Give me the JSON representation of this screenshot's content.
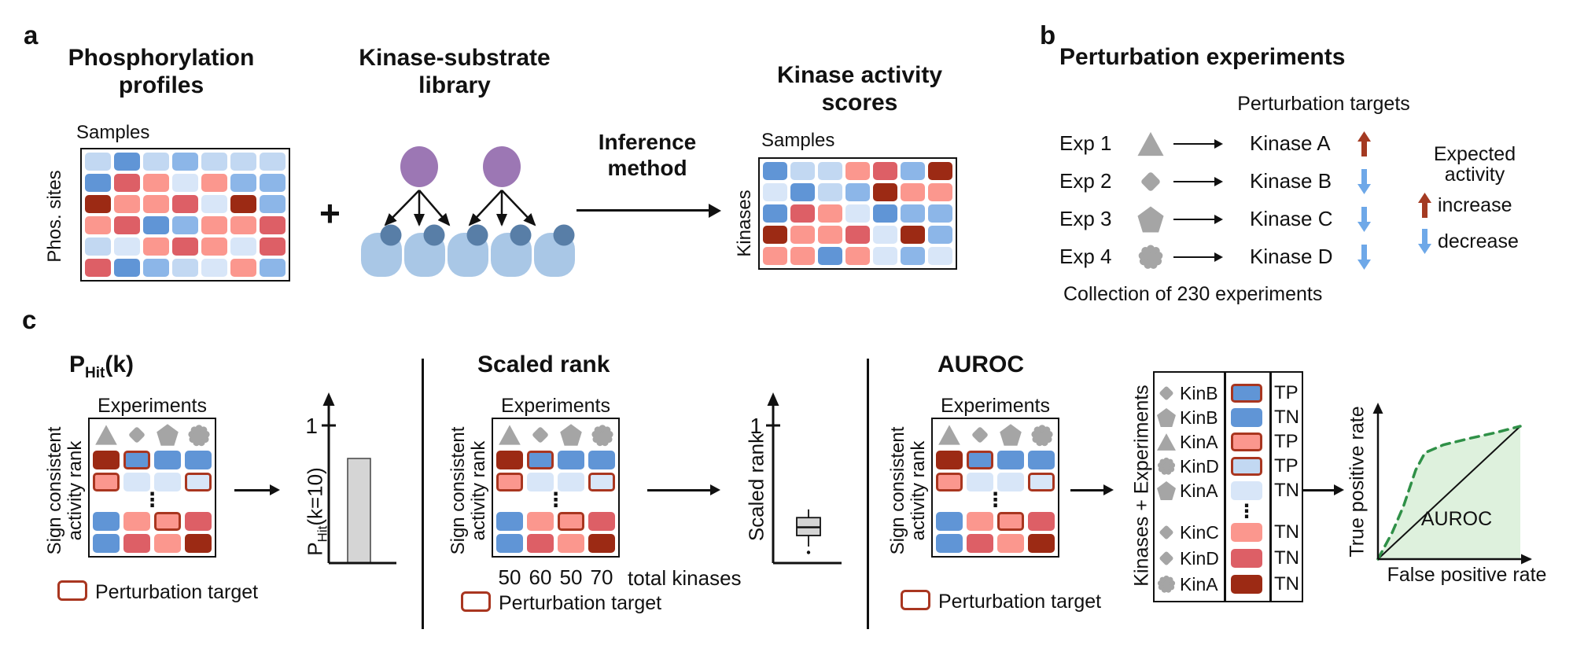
{
  "figure": {
    "panel_a_label": "a",
    "panel_b_label": "b",
    "panel_c_label": "c"
  },
  "colors": {
    "B1": "#d8e6f8",
    "B2": "#c2d8f2",
    "B3": "#8cb6e8",
    "B4": "#6095d6",
    "R1": "#fb978e",
    "R2": "#dd5f66",
    "R3": "#9c2a14",
    "outline": "#a93620",
    "shape_gray": "#a5a5a5",
    "purple": "#9c77b4",
    "substrate_light": "#a9c7e6",
    "substrate_dark": "#587ea7",
    "bar_fill": "#d5d5d5",
    "arrow_up_red": "#a43a22",
    "arrow_down_blue": "#6ea8e8",
    "roc_green": "#2f9047",
    "roc_fill": "#def1dd"
  },
  "panel_a": {
    "profiles_title": [
      "Phosphorylation",
      "profiles"
    ],
    "samples_label": "Samples",
    "sites_label": "Phos. sites",
    "plus_sign": "+",
    "library_title": [
      "Kinase-substrate",
      "library"
    ],
    "inference_label": [
      "Inference",
      "method"
    ],
    "scores_title": [
      "Kinase activity",
      "scores"
    ],
    "scores_samples_label": "Samples",
    "kinases_label": "Kinases",
    "phospho_heatmap": [
      [
        "B2",
        "B4",
        "B2",
        "B3",
        "B2",
        "B2",
        "B2"
      ],
      [
        "B4",
        "R2",
        "R1",
        "B1",
        "R1",
        "B3",
        "B3"
      ],
      [
        "R3",
        "R1",
        "R1",
        "R2",
        "B1",
        "R3",
        "B3"
      ],
      [
        "R1",
        "R2",
        "B4",
        "B3",
        "R1",
        "R1",
        "R2"
      ],
      [
        "B2",
        "B1",
        "R1",
        "R2",
        "R1",
        "B1",
        "R2"
      ],
      [
        "R2",
        "B4",
        "B3",
        "B2",
        "B1",
        "R1",
        "B3"
      ]
    ],
    "activity_heatmap": [
      [
        "B4",
        "B2",
        "B2",
        "R1",
        "R2",
        "B3",
        "R3"
      ],
      [
        "B1",
        "B4",
        "B2",
        "B3",
        "R3",
        "R1",
        "R1"
      ],
      [
        "B4",
        "R2",
        "R1",
        "B1",
        "B4",
        "B3",
        "B3"
      ],
      [
        "R3",
        "R1",
        "R1",
        "R2",
        "B1",
        "R3",
        "B3"
      ],
      [
        "R1",
        "R1",
        "B4",
        "R1",
        "B1",
        "B3",
        "B1"
      ]
    ],
    "network": {
      "kinase_count": 2,
      "substrate_count": 5,
      "edges": [
        [
          0,
          0
        ],
        [
          0,
          1
        ],
        [
          0,
          2
        ],
        [
          1,
          2
        ],
        [
          1,
          3
        ],
        [
          1,
          4
        ]
      ]
    }
  },
  "panel_b": {
    "title": "Perturbation experiments",
    "subtitle": "Perturbation targets",
    "rows": [
      {
        "exp": "Exp 1",
        "shape": "triangle",
        "kinase": "Kinase A",
        "direction": "up"
      },
      {
        "exp": "Exp 2",
        "shape": "diamond",
        "kinase": "Kinase B",
        "direction": "down"
      },
      {
        "exp": "Exp 3",
        "shape": "pentagon",
        "kinase": "Kinase C",
        "direction": "down"
      },
      {
        "exp": "Exp 4",
        "shape": "flower",
        "kinase": "Kinase D",
        "direction": "down"
      }
    ],
    "expected_title": [
      "Expected",
      "activity"
    ],
    "legend": [
      {
        "direction": "up",
        "label": "increase"
      },
      {
        "direction": "down",
        "label": "decrease"
      }
    ],
    "footer": "Collection of 230 experiments"
  },
  "panel_c": {
    "sections": [
      {
        "id": "phit",
        "title_parts": {
          "main": "P",
          "sub": "Hit",
          "rest": "(k)"
        }
      },
      {
        "id": "scaled",
        "title": "Scaled rank"
      },
      {
        "id": "auroc",
        "title": "AUROC"
      }
    ],
    "matrix": {
      "experiments_label": "Experiments",
      "ylabel": [
        "Sign consistent",
        "activity rank"
      ],
      "col_shapes": [
        "triangle",
        "diamond",
        "pentagon",
        "flower"
      ],
      "rows_top": [
        [
          "R3",
          "B4*",
          "B4",
          "B4"
        ],
        [
          "R1*",
          "B1",
          "B1",
          "B1*"
        ]
      ],
      "dots": "⋮",
      "rows_bottom": [
        [
          "B4",
          "R1",
          "R1*",
          "R2"
        ],
        [
          "B4",
          "R2",
          "R1",
          "R3"
        ]
      ]
    },
    "legend_label": "Perturbation target",
    "phit_chart": {
      "axis_tick": "1",
      "ylabel_parts": {
        "main": "P",
        "sub": "Hit",
        "rest": "(k=10)"
      },
      "bar_value": 0.76
    },
    "scaled_chart": {
      "axis_tick": "1",
      "ylabel": "Scaled rank",
      "totals": [
        "50",
        "60",
        "50",
        "70"
      ],
      "totals_label": "total kinases",
      "box": {
        "whisker_low": 0.12,
        "q1": 0.2,
        "median": 0.26,
        "q3": 0.33,
        "whisker_high": 0.39,
        "outlier": 0.1
      }
    },
    "auroc_chart": {
      "list_label": "Kinases + Experiments",
      "list_rows": [
        {
          "shape": "diamond",
          "kinase": "KinB",
          "cell": "B4*",
          "label": "TP"
        },
        {
          "shape": "pentagon",
          "kinase": "KinB",
          "cell": "B4",
          "label": "TN"
        },
        {
          "shape": "triangle",
          "kinase": "KinA",
          "cell": "R1*",
          "label": "TP"
        },
        {
          "shape": "flower",
          "kinase": "KinD",
          "cell": "B2*",
          "label": "TP"
        },
        {
          "shape": "pentagon",
          "kinase": "KinA",
          "cell": "B1",
          "label": "TN"
        },
        {
          "dots": "⋮"
        },
        {
          "shape": "diamond",
          "kinase": "KinC",
          "cell": "R1",
          "label": "TN"
        },
        {
          "shape": "diamond",
          "kinase": "KinD",
          "cell": "R2",
          "label": "TN"
        },
        {
          "shape": "flower",
          "kinase": "KinA",
          "cell": "R3",
          "label": "TN"
        }
      ],
      "roc": {
        "xlabel": "False positive rate",
        "ylabel": "True positive rate",
        "area_label": "AUROC",
        "curve": [
          [
            0,
            0
          ],
          [
            0.1,
            0.2
          ],
          [
            0.18,
            0.4
          ],
          [
            0.265,
            0.67
          ],
          [
            0.33,
            0.8
          ],
          [
            0.46,
            0.86
          ],
          [
            0.65,
            0.91
          ],
          [
            0.82,
            0.95
          ],
          [
            1.0,
            1.0
          ]
        ]
      }
    }
  }
}
